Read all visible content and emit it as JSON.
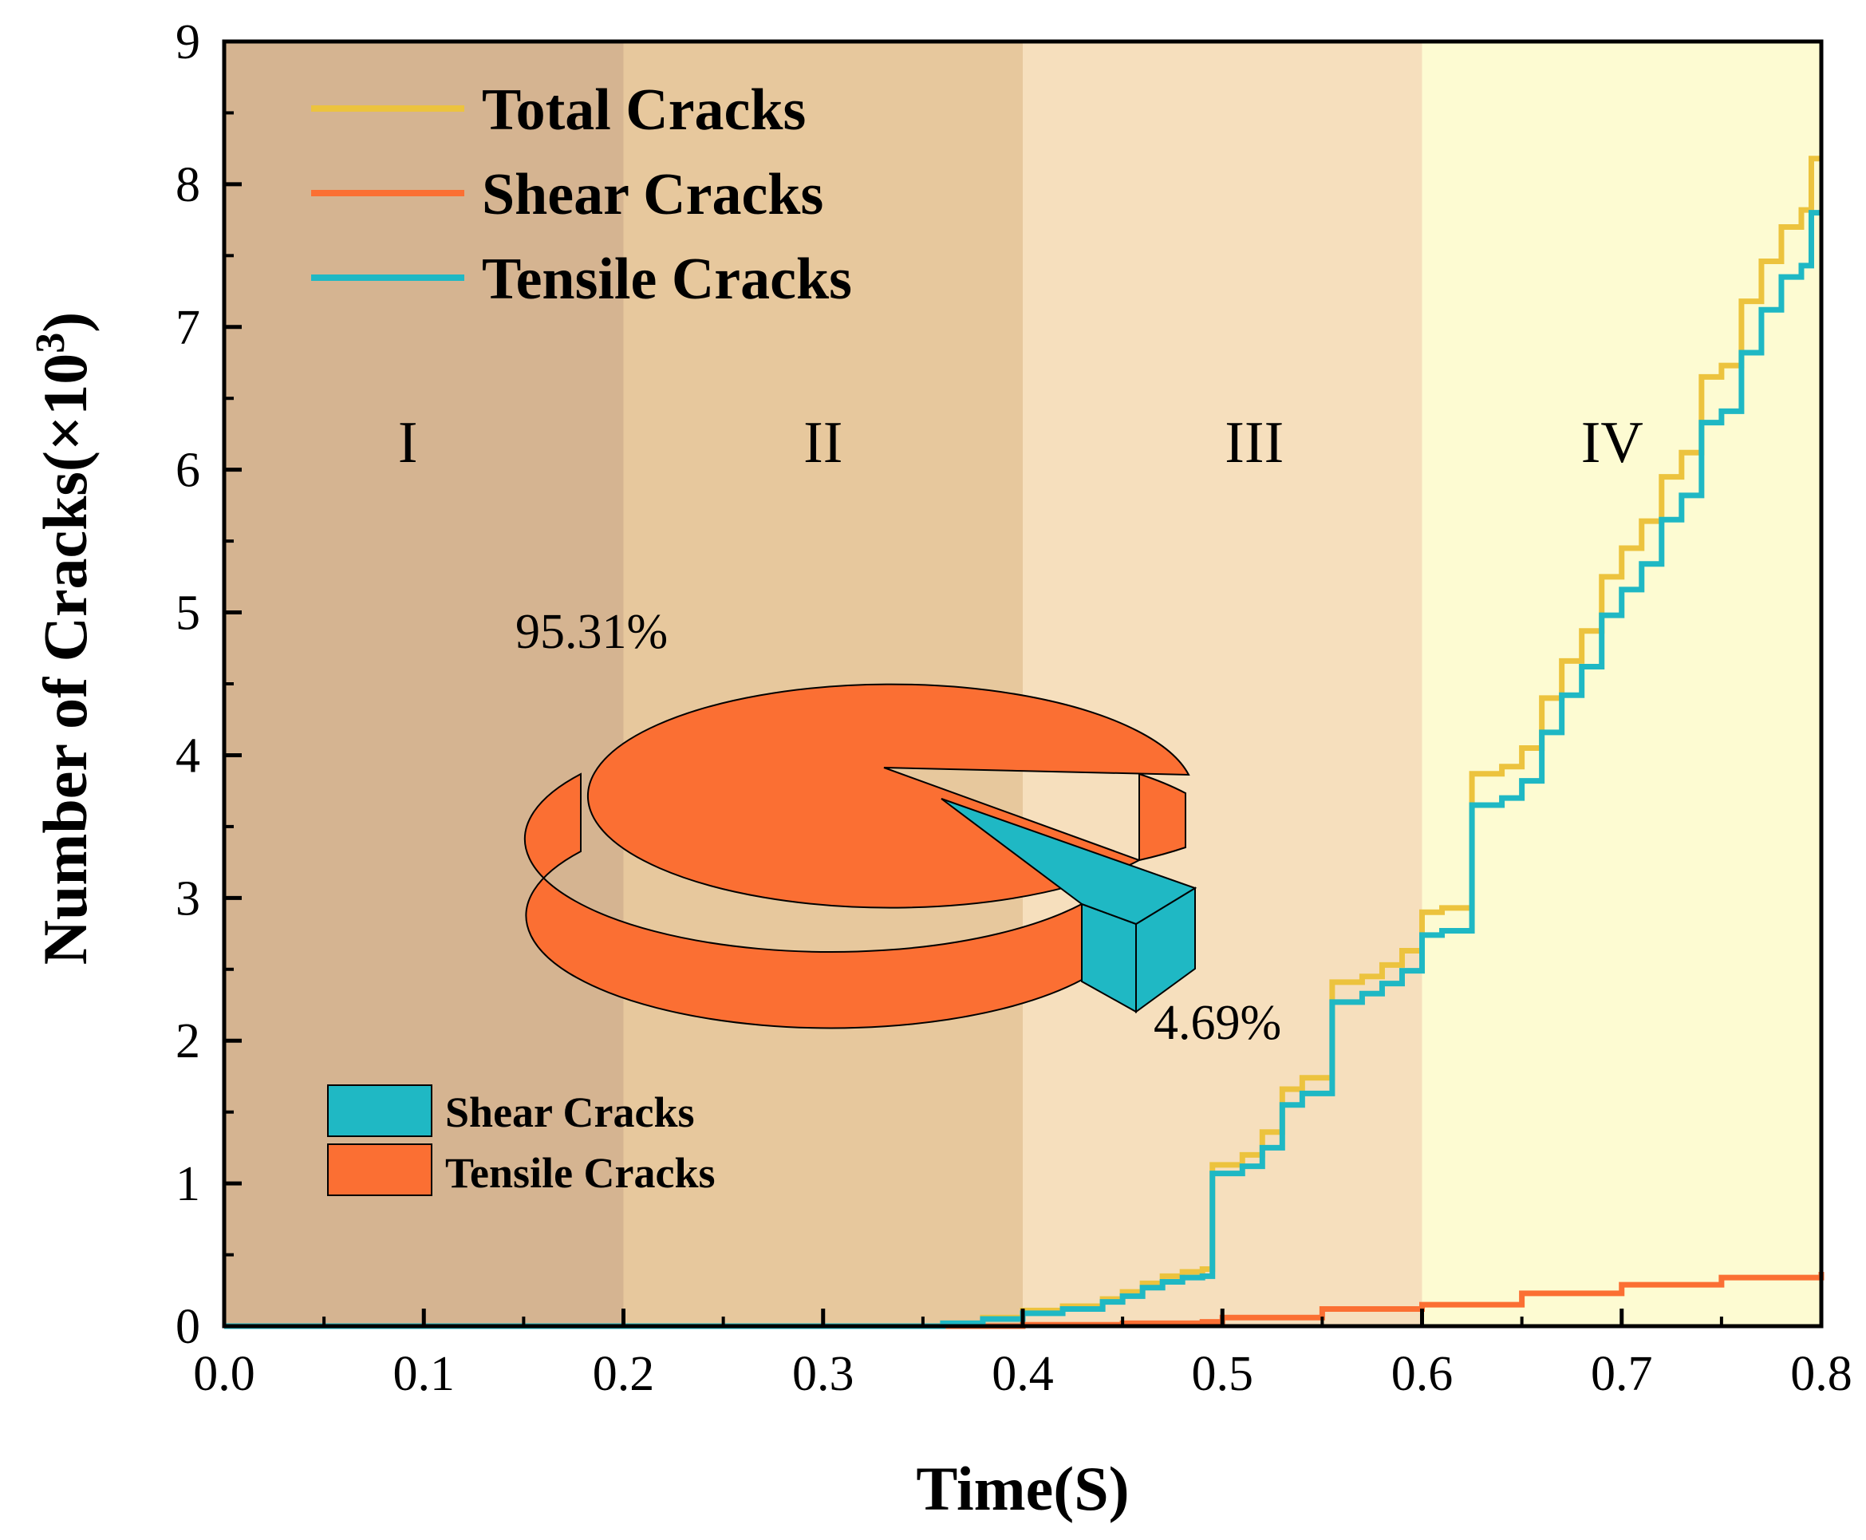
{
  "chart_data": {
    "type": "line",
    "title": "",
    "xlabel": "Time(S)",
    "ylabel_main": "Number of Cracks(×10",
    "ylabel_exp": "3",
    "ylabel_close": ")",
    "xlim": [
      0.0,
      0.8
    ],
    "ylim": [
      0,
      9
    ],
    "x_ticks": [
      "0.0",
      "0.1",
      "0.2",
      "0.3",
      "0.4",
      "0.5",
      "0.6",
      "0.7",
      "0.8"
    ],
    "y_ticks": [
      "0",
      "1",
      "2",
      "3",
      "4",
      "5",
      "6",
      "7",
      "8",
      "9"
    ],
    "stages": [
      {
        "label": "I",
        "x_start": 0.0,
        "x_end": 0.2,
        "color": "#d5b491"
      },
      {
        "label": "II",
        "x_start": 0.2,
        "x_end": 0.4,
        "color": "#e7c89d"
      },
      {
        "label": "III",
        "x_start": 0.4,
        "x_end": 0.6,
        "color": "#f6dfbd"
      },
      {
        "label": "IV",
        "x_start": 0.6,
        "x_end": 0.8,
        "color": "#fdfbd2"
      }
    ],
    "stage_label_y": 6.2,
    "series": [
      {
        "name": "Total Cracks",
        "color": "#ecc33e",
        "x": [
          0.0,
          0.3,
          0.36,
          0.38,
          0.4,
          0.42,
          0.44,
          0.45,
          0.46,
          0.47,
          0.48,
          0.49,
          0.495,
          0.51,
          0.52,
          0.53,
          0.54,
          0.55,
          0.555,
          0.57,
          0.58,
          0.59,
          0.6,
          0.61,
          0.62,
          0.625,
          0.64,
          0.65,
          0.66,
          0.67,
          0.68,
          0.69,
          0.7,
          0.71,
          0.72,
          0.73,
          0.74,
          0.75,
          0.76,
          0.77,
          0.78,
          0.79,
          0.795,
          0.8
        ],
        "y": [
          0.0,
          0.0,
          0.02,
          0.06,
          0.11,
          0.14,
          0.19,
          0.24,
          0.3,
          0.35,
          0.38,
          0.4,
          1.13,
          1.2,
          1.36,
          1.66,
          1.74,
          1.74,
          2.41,
          2.45,
          2.53,
          2.63,
          2.9,
          2.93,
          2.93,
          3.87,
          3.92,
          4.05,
          4.4,
          4.66,
          4.87,
          5.25,
          5.45,
          5.64,
          5.95,
          6.12,
          6.65,
          6.73,
          7.18,
          7.46,
          7.7,
          7.82,
          8.18,
          8.18
        ]
      },
      {
        "name": "Shear Cracks",
        "color": "#fb6f33",
        "x": [
          0.0,
          0.37,
          0.4,
          0.45,
          0.49,
          0.5,
          0.55,
          0.6,
          0.65,
          0.7,
          0.75,
          0.8
        ],
        "y": [
          0.0,
          0.0,
          0.01,
          0.02,
          0.03,
          0.06,
          0.12,
          0.15,
          0.23,
          0.29,
          0.34,
          0.38
        ]
      },
      {
        "name": "Tensile Cracks",
        "color": "#1fb8c4",
        "x": [
          0.0,
          0.3,
          0.36,
          0.38,
          0.4,
          0.42,
          0.44,
          0.45,
          0.46,
          0.47,
          0.48,
          0.49,
          0.495,
          0.51,
          0.52,
          0.53,
          0.54,
          0.55,
          0.555,
          0.57,
          0.58,
          0.59,
          0.6,
          0.61,
          0.62,
          0.625,
          0.64,
          0.65,
          0.66,
          0.67,
          0.68,
          0.69,
          0.7,
          0.71,
          0.72,
          0.73,
          0.74,
          0.75,
          0.76,
          0.77,
          0.78,
          0.79,
          0.795,
          0.8
        ],
        "y": [
          0.0,
          0.0,
          0.02,
          0.05,
          0.09,
          0.12,
          0.17,
          0.21,
          0.27,
          0.31,
          0.34,
          0.35,
          1.07,
          1.12,
          1.25,
          1.55,
          1.63,
          1.63,
          2.27,
          2.33,
          2.4,
          2.49,
          2.74,
          2.77,
          2.77,
          3.65,
          3.7,
          3.82,
          4.16,
          4.42,
          4.62,
          4.98,
          5.16,
          5.34,
          5.65,
          5.82,
          6.33,
          6.41,
          6.82,
          7.12,
          7.35,
          7.43,
          7.8,
          7.8
        ]
      }
    ],
    "pie": {
      "type": "pie",
      "slices": [
        {
          "label": "Shear Cracks",
          "value": 4.69,
          "pct_text": "4.69%",
          "color": "#1fb8c4"
        },
        {
          "label": "Tensile Cracks",
          "value": 95.31,
          "pct_text": "95.31%",
          "color": "#fb6f33"
        }
      ]
    }
  }
}
